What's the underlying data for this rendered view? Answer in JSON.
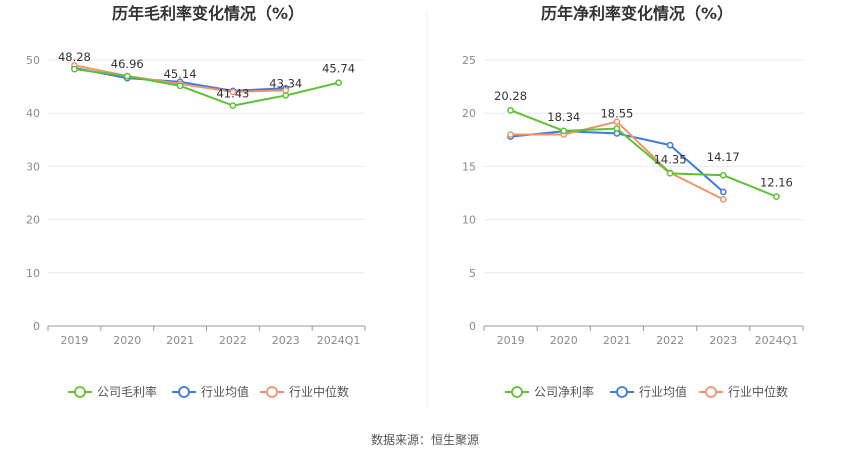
{
  "source": "数据来源：恒生聚源",
  "colors": {
    "company": "#5cc234",
    "industry_avg": "#3e7ae0",
    "industry_median": "#f0926a"
  },
  "chart_data": [
    {
      "type": "line",
      "title": "历年毛利率变化情况（%）",
      "categories": [
        "2019",
        "2020",
        "2021",
        "2022",
        "2023",
        "2024Q1"
      ],
      "ylim": [
        0,
        50
      ],
      "yticks": [
        0,
        10,
        20,
        30,
        40,
        50
      ],
      "grid": true,
      "legend": "bottom",
      "series": [
        {
          "name": "公司毛利率",
          "key": "company",
          "values": [
            48.28,
            46.96,
            45.14,
            41.43,
            43.34,
            45.74
          ]
        },
        {
          "name": "行业均值",
          "key": "industry_avg",
          "values": [
            48.5,
            46.6,
            45.9,
            44.2,
            44.7,
            null
          ]
        },
        {
          "name": "行业中位数",
          "key": "industry_median",
          "values": [
            49.0,
            47.0,
            45.5,
            44.0,
            44.3,
            null
          ]
        }
      ],
      "labels": [
        "48.28",
        "46.96",
        "45.14",
        "41.43",
        "43.34",
        "45.74"
      ]
    },
    {
      "type": "line",
      "title": "历年净利率变化情况（%）",
      "categories": [
        "2019",
        "2020",
        "2021",
        "2022",
        "2023",
        "2024Q1"
      ],
      "ylim": [
        0,
        25
      ],
      "yticks": [
        0,
        5,
        10,
        15,
        20,
        25
      ],
      "grid": true,
      "legend": "bottom",
      "series": [
        {
          "name": "公司净利率",
          "key": "company",
          "values": [
            20.28,
            18.34,
            18.55,
            14.35,
            14.17,
            12.16
          ]
        },
        {
          "name": "行业均值",
          "key": "industry_avg",
          "values": [
            17.8,
            18.3,
            18.1,
            17.0,
            12.6,
            null
          ]
        },
        {
          "name": "行业中位数",
          "key": "industry_median",
          "values": [
            18.0,
            18.0,
            19.2,
            14.4,
            11.9,
            null
          ]
        }
      ],
      "labels": [
        "20.28",
        "18.34",
        "18.55",
        "14.35",
        "14.17",
        "12.16"
      ]
    }
  ]
}
